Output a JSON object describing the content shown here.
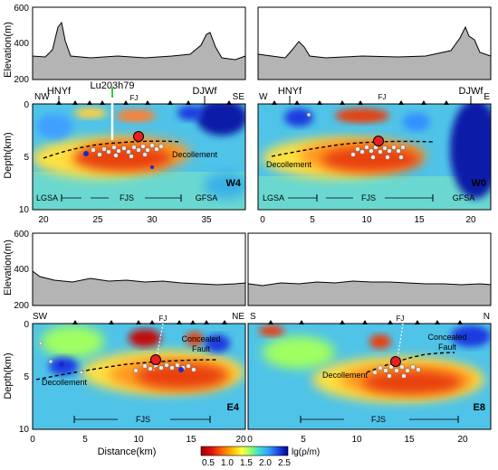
{
  "axes": {
    "elevation_label": "Elevation(m)",
    "depth_label": "Depth(km)",
    "distance_label": "Distance(km)",
    "elev_ticks": [
      "600",
      "400",
      "200"
    ],
    "depth_ticks_top": [
      "0",
      "5",
      "10"
    ],
    "depth_ticks_bottom": [
      "0",
      "5",
      "10"
    ]
  },
  "panels": {
    "W4": {
      "id_label": "W4",
      "left_dir": "NW",
      "right_dir": "SE",
      "x_ticks": [
        "20",
        "25",
        "30",
        "35"
      ],
      "fault1": "HNYf",
      "fault2": "DJWf",
      "well": "Lu203h79",
      "fj": "FJ",
      "decollement": "Decollement",
      "zones": [
        "LGSA",
        "FJS",
        "GFSA"
      ]
    },
    "W0": {
      "id_label": "W0",
      "left_dir": "W",
      "right_dir": "E",
      "x_ticks": [
        "0",
        "5",
        "10",
        "15",
        "20"
      ],
      "fault1": "HNYf",
      "fault2": "DJWf",
      "fj": "FJ",
      "decollement": "Decollement",
      "zones": [
        "LGSA",
        "FJS",
        "GFSA"
      ]
    },
    "E4": {
      "id_label": "E4",
      "left_dir": "SW",
      "right_dir": "NE",
      "x_ticks": [
        "0",
        "5",
        "10",
        "15",
        "20"
      ],
      "fj": "FJ",
      "concealed": [
        "Concealed",
        "Fault"
      ],
      "decollement": "Decollement",
      "zones": [
        "FJS"
      ]
    },
    "E8": {
      "id_label": "E8",
      "left_dir": "S",
      "right_dir": "N",
      "x_ticks": [
        "0",
        "5",
        "10",
        "15",
        "20"
      ],
      "fj": "FJ",
      "concealed": [
        "Concealed",
        "Fault"
      ],
      "decollement": "Decollement",
      "zones": [
        "FJS"
      ]
    }
  },
  "colorbar": {
    "label": "lg(ρ/m)",
    "ticks": [
      "0.5",
      "1.0",
      "1.5",
      "2.0",
      "2.5"
    ],
    "colors": [
      "#a00000",
      "#e01010",
      "#ff6a00",
      "#ffc000",
      "#ffff40",
      "#a0ff60",
      "#40e0d0",
      "#30a0ff",
      "#1a40e0",
      "#00008b"
    ]
  },
  "colors": {
    "terrain_fill": "#b4b4b4",
    "background_mid": "#4fc3e8",
    "conductor": "#e83010",
    "resistor": "#0a1aa8",
    "well_marker": "#2ecc40"
  }
}
